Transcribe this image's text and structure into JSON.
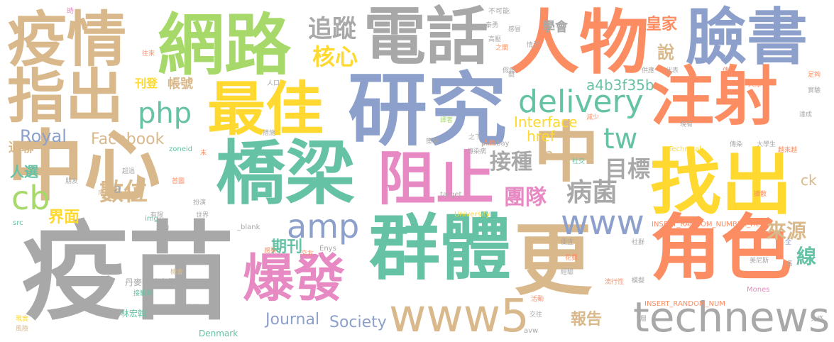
{
  "palette": {
    "tan": "#d9b98b",
    "green": "#a6d96a",
    "gray": "#a8a8a8",
    "blue": "#8da0cb",
    "orange": "#fc8d62",
    "teal": "#66c2a5",
    "yellow": "#ffd92f",
    "pink": "#e78ac3"
  },
  "words": [
    {
      "text": "疫苗",
      "color": "gray"
    },
    {
      "text": "研究",
      "color": "blue"
    },
    {
      "text": "中心",
      "color": "tan"
    },
    {
      "text": "網路",
      "color": "green"
    },
    {
      "text": "電話",
      "color": "gray"
    },
    {
      "text": "人物",
      "color": "orange"
    },
    {
      "text": "疫情",
      "color": "tan"
    },
    {
      "text": "指出",
      "color": "tan"
    },
    {
      "text": "臉書",
      "color": "blue"
    },
    {
      "text": "注射",
      "color": "orange"
    },
    {
      "text": "最佳",
      "color": "yellow"
    },
    {
      "text": "橋梁",
      "color": "teal"
    },
    {
      "text": "群體",
      "color": "teal"
    },
    {
      "text": "更",
      "color": "tan"
    },
    {
      "text": "角色",
      "color": "orange"
    },
    {
      "text": "阻止",
      "color": "pink"
    },
    {
      "text": "找出",
      "color": "yellow"
    },
    {
      "text": "中",
      "color": "tan"
    },
    {
      "text": "爆發",
      "color": "pink"
    },
    {
      "text": "www5",
      "color": "tan"
    },
    {
      "text": "technews",
      "color": "gray"
    },
    {
      "text": "www",
      "color": "blue"
    },
    {
      "text": "amp",
      "color": "blue"
    },
    {
      "text": "php",
      "color": "teal"
    },
    {
      "text": "delivery",
      "color": "teal"
    },
    {
      "text": "cb",
      "color": "green"
    },
    {
      "text": "追蹤",
      "color": "gray"
    },
    {
      "text": "核心",
      "color": "yellow"
    },
    {
      "text": "數位",
      "color": "tan"
    },
    {
      "text": "病菌",
      "color": "gray"
    },
    {
      "text": "團隊",
      "color": "pink"
    },
    {
      "text": "接種",
      "color": "gray"
    },
    {
      "text": "目標",
      "color": "gray"
    },
    {
      "text": "tw",
      "color": "teal"
    },
    {
      "text": "來源",
      "color": "tan"
    },
    {
      "text": "線",
      "color": "teal"
    },
    {
      "text": "說",
      "color": "tan"
    },
    {
      "text": "皇家",
      "color": "orange"
    },
    {
      "text": "學會",
      "color": "gray"
    },
    {
      "text": "a4b3f35b",
      "color": "teal"
    },
    {
      "text": "Facebook",
      "color": "tan"
    },
    {
      "text": "Royal",
      "color": "blue"
    },
    {
      "text": "Interface",
      "color": "yellow"
    },
    {
      "text": "href",
      "color": "yellow"
    },
    {
      "text": "Journal",
      "color": "blue"
    },
    {
      "text": "Society",
      "color": "blue"
    },
    {
      "text": "報告",
      "color": "tan"
    },
    {
      "text": "期刊",
      "color": "teal"
    },
    {
      "text": "界面",
      "color": "yellow"
    },
    {
      "text": "人選",
      "color": "teal"
    },
    {
      "text": "通聯",
      "color": "tan"
    },
    {
      "text": "刊登",
      "color": "yellow"
    },
    {
      "text": "帳號",
      "color": "tan"
    },
    {
      "text": "ck",
      "color": "tan"
    },
    {
      "text": "n",
      "color": "tan"
    },
    {
      "text": "a",
      "color": "gray"
    },
    {
      "text": "丹麥科技大學",
      "color": "gray"
    },
    {
      "text": "林宏翰",
      "color": "teal"
    },
    {
      "text": "Denmark",
      "color": "teal"
    },
    {
      "text": "INSERT_RANDOM_NUMBER_HERE",
      "color": "orange"
    },
    {
      "text": "INSERT_RANDOM_NUM",
      "color": "orange"
    },
    {
      "text": "University",
      "color": "yellow"
    },
    {
      "text": "pixabay",
      "color": "gray"
    },
    {
      "text": "target",
      "color": "gray"
    },
    {
      "text": "zoneid",
      "color": "teal"
    },
    {
      "text": "Technical",
      "color": "yellow"
    },
    {
      "text": "Mones",
      "color": "pink"
    },
    {
      "text": "Enys",
      "color": "gray"
    },
    {
      "text": "_blank",
      "color": "gray"
    },
    {
      "text": "avw",
      "color": "gray"
    },
    {
      "text": "src",
      "color": "teal"
    },
    {
      "text": "img",
      "color": "teal"
    },
    {
      "text": "不可能",
      "color": "gray"
    },
    {
      "text": "時",
      "color": "pink"
    },
    {
      "text": "往來",
      "color": "orange"
    },
    {
      "text": "人口",
      "color": "gray"
    },
    {
      "text": "措施",
      "color": "gray"
    },
    {
      "text": "假設",
      "color": "gray"
    },
    {
      "text": "供應",
      "color": "gray"
    },
    {
      "text": "代表",
      "color": "gray"
    },
    {
      "text": "傳布",
      "color": "orange"
    },
    {
      "text": "人際",
      "color": "orange"
    },
    {
      "text": "足夠",
      "color": "orange"
    },
    {
      "text": "實驗",
      "color": "gray"
    },
    {
      "text": "達成",
      "color": "gray"
    },
    {
      "text": "現有",
      "color": "gray"
    },
    {
      "text": "大學生",
      "color": "gray"
    },
    {
      "text": "越來越",
      "color": "orange"
    },
    {
      "text": "傳染",
      "color": "gray"
    },
    {
      "text": "減少",
      "color": "orange"
    },
    {
      "text": "之下",
      "color": "gray"
    },
    {
      "text": "人數",
      "color": "orange"
    },
    {
      "text": "社交",
      "color": "teal"
    },
    {
      "text": "傳染病",
      "color": "gray"
    },
    {
      "text": "擴散",
      "color": "orange"
    },
    {
      "text": "社群",
      "color": "gray"
    },
    {
      "text": "美尼斯",
      "color": "gray"
    },
    {
      "text": "便宜",
      "color": "gray"
    },
    {
      "text": "花費",
      "color": "orange"
    },
    {
      "text": "經驗",
      "color": "gray"
    },
    {
      "text": "流行性",
      "color": "orange"
    },
    {
      "text": "模擬",
      "color": "gray"
    },
    {
      "text": "活動",
      "color": "orange"
    },
    {
      "text": "交往",
      "color": "gray"
    },
    {
      "text": "感染",
      "color": "orange"
    },
    {
      "text": "交友",
      "color": "orange"
    },
    {
      "text": "接觸到",
      "color": "teal"
    },
    {
      "text": "機會",
      "color": "tan"
    },
    {
      "text": "電腦",
      "color": "gray"
    },
    {
      "text": "現實",
      "color": "yellow"
    },
    {
      "text": "風險",
      "color": "tan"
    },
    {
      "text": "超過",
      "color": "gray"
    },
    {
      "text": "朋友",
      "color": "gray"
    },
    {
      "text": "成員",
      "color": "tan"
    },
    {
      "text": "首圖",
      "color": "orange"
    },
    {
      "text": "扮演",
      "color": "gray"
    },
    {
      "text": "世界",
      "color": "gray"
    },
    {
      "text": "有限",
      "color": "gray"
    },
    {
      "text": "藥物",
      "color": "gray"
    },
    {
      "text": "末",
      "color": "orange"
    },
    {
      "text": "全",
      "color": "blue"
    },
    {
      "text": "名",
      "color": "gray"
    },
    {
      "text": "免疫",
      "color": "gray"
    },
    {
      "text": "層",
      "color": "gray"
    },
    {
      "text": "泰勇",
      "color": "gray"
    },
    {
      "text": "感冒",
      "color": "gray"
    },
    {
      "text": "高壓",
      "color": "gray"
    },
    {
      "text": "之間",
      "color": "orange"
    },
    {
      "text": "情況",
      "color": "gray"
    },
    {
      "text": "間",
      "color": "gray"
    },
    {
      "text": "譯者",
      "color": "green"
    },
    {
      "text": "策略",
      "color": "gray"
    }
  ]
}
